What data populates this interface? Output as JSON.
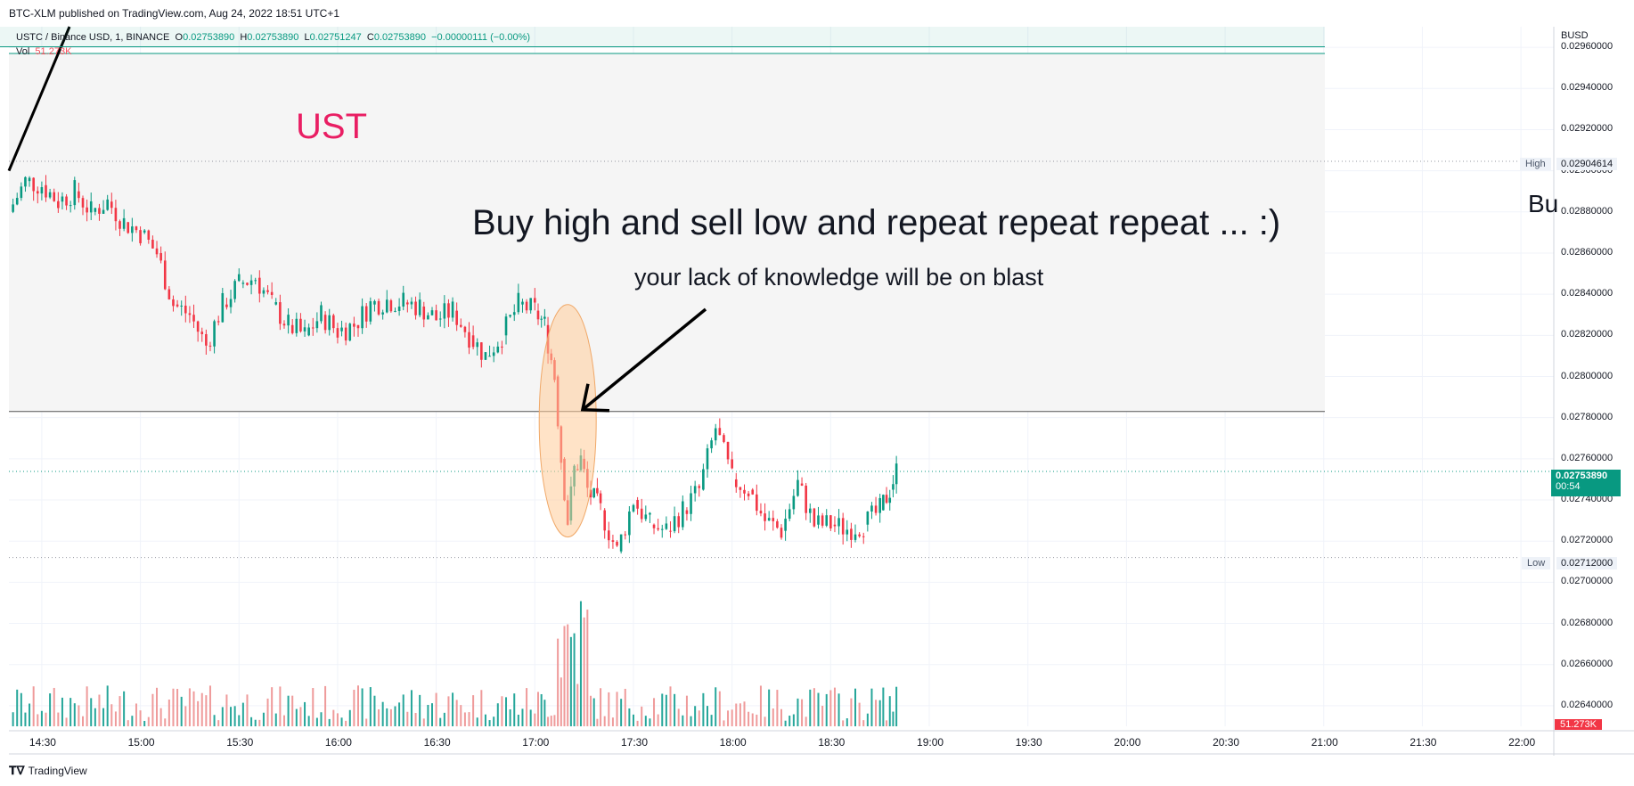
{
  "header": {
    "published": "BTC-XLM published on TradingView.com, Aug 24, 2022 18:51 UTC+1"
  },
  "legend": {
    "symbol": "USTC / Binance USD, 1, BINANCE",
    "o_label": "O",
    "o_val": "0.02753890",
    "h_label": "H",
    "h_val": "0.02753890",
    "l_label": "L",
    "l_val": "0.02751247",
    "c_label": "C",
    "c_val": "0.02753890",
    "change": "−0.00000111 (−0.00%)",
    "vol_label": "Vol",
    "vol_val": "51.273K"
  },
  "annotations": {
    "ust": "UST",
    "headline": "Buy high and sell low and repeat repeat repeat ...  :)",
    "subline": "your lack of knowledge will be on blast",
    "cut_text": "Bu"
  },
  "price_axis": {
    "currency": "BUSD",
    "ticks": [
      "0.02960000",
      "0.02940000",
      "0.02920000",
      "0.02900000",
      "0.02880000",
      "0.02860000",
      "0.02840000",
      "0.02820000",
      "0.02800000",
      "0.02780000",
      "0.02760000",
      "0.02740000",
      "0.02720000",
      "0.02700000",
      "0.02680000",
      "0.02660000",
      "0.02640000"
    ],
    "high_label": "High",
    "high_value": "0.02904614",
    "low_label": "Low",
    "low_value": "0.02712000",
    "last_price": "0.02753890",
    "countdown": "00:54",
    "volume_badge": "51.273K"
  },
  "time_axis": {
    "ticks": [
      "14:30",
      "15:00",
      "15:30",
      "16:00",
      "16:30",
      "17:00",
      "17:30",
      "18:00",
      "18:30",
      "19:00",
      "19:30",
      "20:00",
      "20:30",
      "21:00",
      "21:30",
      "22:00"
    ]
  },
  "footer": {
    "brand": "TradingView"
  },
  "colors": {
    "up": "#089981",
    "down": "#f23645",
    "vol_up": "#26a69a",
    "vol_down": "#ef9a9a",
    "ust": "#e91e63",
    "ellipse": "#ffcc99"
  },
  "chart_data": {
    "type": "candlestick",
    "title": "USTC / Binance USD, 1, BINANCE",
    "ylabel": "BUSD",
    "ylim": [
      0.0263,
      0.0297
    ],
    "x_range": [
      "14:20",
      "22:10"
    ],
    "grid": true,
    "series": [
      {
        "name": "price",
        "path": [
          [
            "14:20",
            0.0288
          ],
          [
            "14:25",
            0.02895
          ],
          [
            "14:30",
            0.02893
          ],
          [
            "14:35",
            0.02885
          ],
          [
            "14:40",
            0.0289
          ],
          [
            "14:45",
            0.0288
          ],
          [
            "14:50",
            0.02885
          ],
          [
            "14:55",
            0.02875
          ],
          [
            "15:00",
            0.0287
          ],
          [
            "15:05",
            0.0286
          ],
          [
            "15:10",
            0.02835
          ],
          [
            "15:15",
            0.0283
          ],
          [
            "15:20",
            0.02815
          ],
          [
            "15:25",
            0.02835
          ],
          [
            "15:30",
            0.02845
          ],
          [
            "15:35",
            0.02848
          ],
          [
            "15:40",
            0.02835
          ],
          [
            "15:45",
            0.02825
          ],
          [
            "15:50",
            0.0282
          ],
          [
            "15:55",
            0.0283
          ],
          [
            "16:00",
            0.02822
          ],
          [
            "16:05",
            0.02825
          ],
          [
            "16:10",
            0.02835
          ],
          [
            "16:15",
            0.02837
          ],
          [
            "16:20",
            0.02836
          ],
          [
            "16:25",
            0.02834
          ],
          [
            "16:30",
            0.02828
          ],
          [
            "16:35",
            0.02832
          ],
          [
            "16:40",
            0.0282
          ],
          [
            "16:45",
            0.0281
          ],
          [
            "16:50",
            0.0282
          ],
          [
            "16:55",
            0.02835
          ],
          [
            "17:00",
            0.02832
          ],
          [
            "17:03",
            0.02825
          ],
          [
            "17:06",
            0.028
          ],
          [
            "17:08",
            0.0276
          ],
          [
            "17:10",
            0.0273
          ],
          [
            "17:12",
            0.02755
          ],
          [
            "17:14",
            0.0276
          ],
          [
            "17:16",
            0.02745
          ],
          [
            "17:20",
            0.02735
          ],
          [
            "17:25",
            0.02715
          ],
          [
            "17:30",
            0.0274
          ],
          [
            "17:35",
            0.02728
          ],
          [
            "17:40",
            0.02725
          ],
          [
            "17:45",
            0.02735
          ],
          [
            "17:50",
            0.02745
          ],
          [
            "17:55",
            0.02775
          ],
          [
            "18:00",
            0.0275
          ],
          [
            "18:05",
            0.02745
          ],
          [
            "18:10",
            0.0273
          ],
          [
            "18:15",
            0.02725
          ],
          [
            "18:20",
            0.02748
          ],
          [
            "18:25",
            0.02728
          ],
          [
            "18:30",
            0.02728
          ],
          [
            "18:35",
            0.02726
          ],
          [
            "18:40",
            0.02728
          ],
          [
            "18:45",
            0.02735
          ],
          [
            "18:48",
            0.02745
          ],
          [
            "18:50",
            0.02754
          ]
        ]
      }
    ],
    "annotations": [
      {
        "text": "UST"
      },
      {
        "text": "Buy high and sell low and repeat repeat repeat ...  :)"
      },
      {
        "text": "your lack of knowledge will be on blast"
      }
    ],
    "levels": {
      "high": 0.02904614,
      "low": 0.02712,
      "last": 0.0275389,
      "box_top": 0.02957,
      "box_bottom": 0.02783
    }
  }
}
